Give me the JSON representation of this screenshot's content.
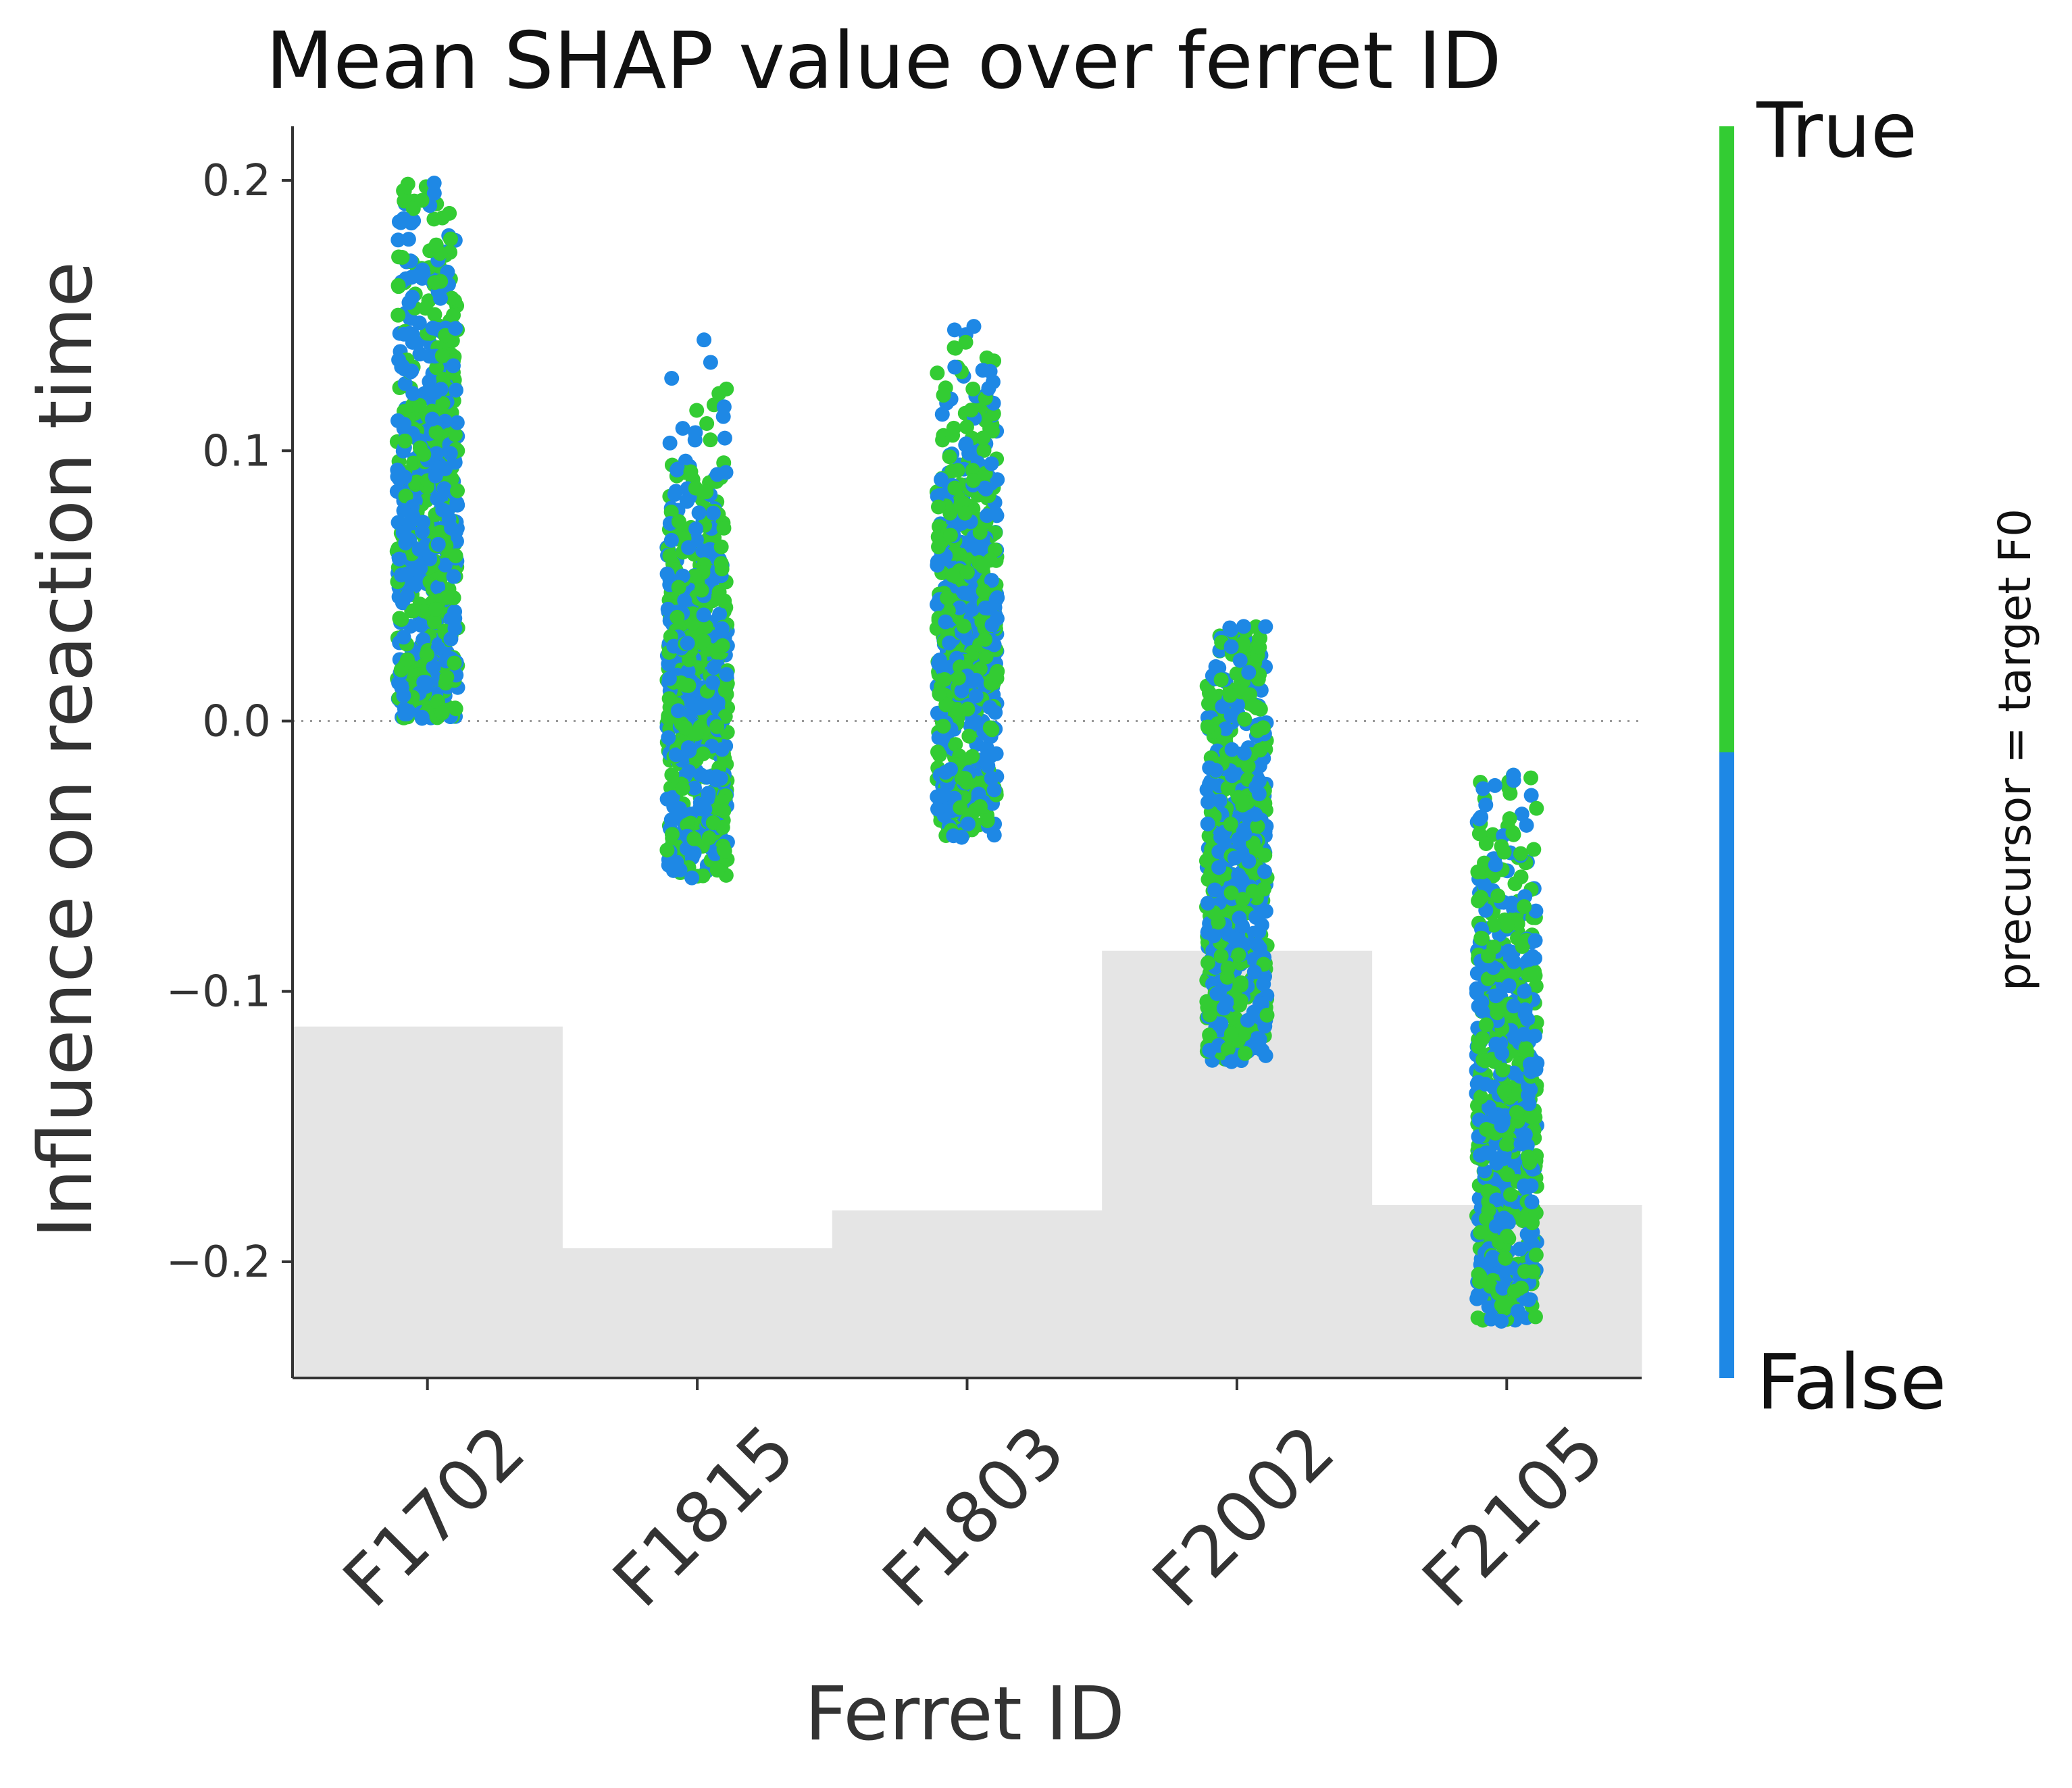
{
  "chart_data": {
    "type": "scatter",
    "title": "Mean SHAP value over ferret ID",
    "xlabel": "Ferret ID",
    "ylabel": "Influence on reaction time",
    "categories": [
      "F1702",
      "F1815",
      "F1803",
      "F2002",
      "F2105"
    ],
    "ylim": [
      -0.243,
      0.22
    ],
    "yticks": [
      -0.2,
      -0.1,
      0.0,
      0.1,
      0.2
    ],
    "ytick_labels": [
      "−0.2",
      "−0.1",
      "0.0",
      "0.1",
      "0.2"
    ],
    "grid": false,
    "zero_line": true,
    "background_bars": {
      "name": "",
      "values": [
        -0.113,
        -0.195,
        -0.181,
        -0.085,
        -0.179
      ]
    },
    "colorbar": {
      "label": "precursor = target F0",
      "high_label": "True",
      "low_label": "False",
      "high_color": "#33cc33",
      "low_color": "#1e88e5"
    },
    "series": [
      {
        "name": "True",
        "color": "#33cc33"
      },
      {
        "name": "False",
        "color": "#1e88e5"
      }
    ],
    "distributions": [
      {
        "category": "F1702",
        "center": 0.075,
        "min": 0.001,
        "max": 0.199,
        "q1": 0.045,
        "q3": 0.125
      },
      {
        "category": "F1815",
        "center": 0.012,
        "min": -0.058,
        "max": 0.141,
        "q1": -0.015,
        "q3": 0.045
      },
      {
        "category": "F1803",
        "center": 0.038,
        "min": -0.043,
        "max": 0.146,
        "q1": 0.01,
        "q3": 0.07
      },
      {
        "category": "F2002",
        "center": -0.055,
        "min": -0.126,
        "max": 0.035,
        "q1": -0.085,
        "q3": -0.02
      },
      {
        "category": "F2105",
        "center": -0.14,
        "min": -0.222,
        "max": -0.02,
        "q1": -0.175,
        "q3": -0.1
      }
    ]
  }
}
